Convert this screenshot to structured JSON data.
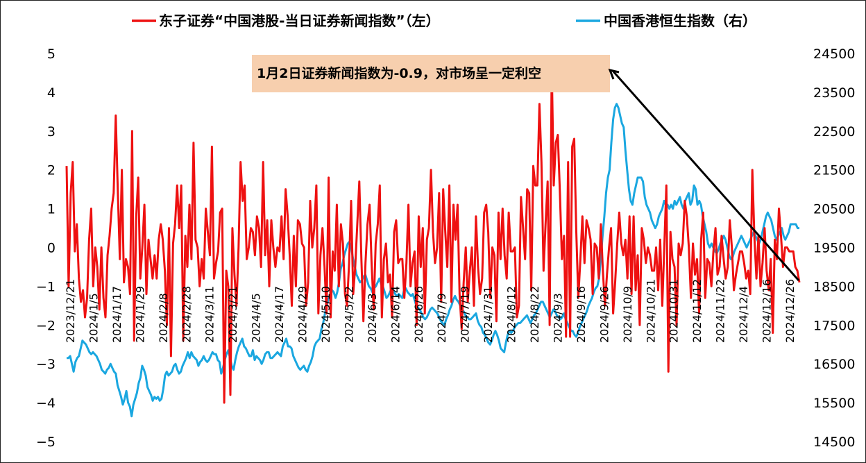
{
  "chart_data": {
    "type": "line",
    "colors": {
      "left_series": "#ee1111",
      "right_series": "#1aa7e0",
      "annotation_box": "#f7cfae"
    },
    "series": [
      {
        "name": "东子证券“中国港股-当日证券新闻指数”（左）",
        "axis": "left",
        "color": "#ee1111"
      },
      {
        "name": "中国香港恒生指数（右）",
        "axis": "right",
        "color": "#1aa7e0"
      }
    ],
    "left_axis": {
      "ylim": [
        -5,
        5
      ],
      "ticks": [
        "5",
        "4",
        "3",
        "2",
        "1",
        "0",
        "−1",
        "−2",
        "−3",
        "−4",
        "−5"
      ]
    },
    "right_axis": {
      "ylim": [
        14500,
        24500
      ],
      "ticks": [
        "24500",
        "23500",
        "22500",
        "21500",
        "20500",
        "19500",
        "18500",
        "17500",
        "16500",
        "15500",
        "14500"
      ]
    },
    "x_tick_labels": [
      "2023/12/21",
      "2024/1/5",
      "2024/1/17",
      "2024/1/29",
      "2024/2/8",
      "2024/2/28",
      "2024/3/11",
      "2024/3/21",
      "2024/4/5",
      "2024/4/17",
      "2024/4/29",
      "2024/5/10",
      "2024/5/22",
      "2024/6/3",
      "2024/6/14",
      "2024/6/26",
      "2024/7/9",
      "2024/7/19",
      "2024/7/31",
      "2024/8/12",
      "2024/8/22",
      "2024/9/3",
      "2024/9/16",
      "2024/9/26",
      "2024/10/9",
      "2024/10/21",
      "2024/10/31",
      "2024/11/12",
      "2024/11/22",
      "2024/12/4",
      "2024/12/16",
      "2024/12/26"
    ],
    "left_values": [
      2.1,
      -1.0,
      1.4,
      2.2,
      -0.1,
      0.6,
      -0.8,
      -1.4,
      -1.1,
      -1.8,
      -1.3,
      0.2,
      1.0,
      -1.0,
      0.0,
      -0.5,
      -1.6,
      0.0,
      -1.3,
      -1.8,
      -0.2,
      0.3,
      1.0,
      1.4,
      3.4,
      1.5,
      -0.3,
      2.0,
      -0.9,
      -0.3,
      -0.5,
      -1.2,
      3.0,
      -2.4,
      0.8,
      1.8,
      -0.8,
      0.0,
      1.1,
      -1.2,
      0.2,
      -0.3,
      -0.8,
      -0.2,
      -0.8,
      0.2,
      0.6,
      0.2,
      -0.6,
      -2.0,
      0.5,
      -2.8,
      0.1,
      0.6,
      1.6,
      0.5,
      1.6,
      -2.4,
      0.3,
      -0.5,
      1.1,
      -0.3,
      2.7,
      0.2,
      0.0,
      -1.0,
      -0.3,
      -0.8,
      1.0,
      0.4,
      -0.2,
      2.6,
      -0.8,
      -0.4,
      -0.1,
      0.9,
      1.0,
      -4.0,
      -0.6,
      -1.0,
      -3.8,
      0.5,
      -0.7,
      -1.5,
      0.0,
      2.2,
      1.2,
      1.6,
      -0.3,
      0.0,
      0.5,
      0.4,
      -0.2,
      0.8,
      0.5,
      -0.5,
      2.2,
      -0.2,
      0.7,
      -1.0,
      0.7,
      0.0,
      -0.5,
      0.0,
      -0.1,
      0.8,
      -0.3,
      1.5,
      0.8,
      -0.2,
      -1.5,
      0.3,
      -1.0,
      0.7,
      0.6,
      0.1,
      0.0,
      -1.5,
      -0.9,
      1.2,
      0.0,
      0.5,
      1.6,
      -1.7,
      -0.2,
      0.5,
      -0.5,
      -1.7,
      1.8,
      -1.8,
      -0.1,
      -0.6,
      1.1,
      -1.0,
      0.6,
      0.1,
      -1.2,
      -1.5,
      -0.4,
      1.2,
      -1.2,
      -0.5,
      0.6,
      1.7,
      -0.3,
      -1.9,
      -0.4,
      0.6,
      1.1,
      -0.4,
      -1.6,
      0.1,
      0.6,
      1.6,
      -1.8,
      -0.3,
      0.1,
      -0.9,
      -0.7,
      -1.8,
      0.4,
      0.7,
      -0.4,
      -0.3,
      -0.3,
      -1.3,
      -0.4,
      1.1,
      -1.0,
      -0.4,
      -0.1,
      -2.0,
      0.8,
      -0.5,
      0.5,
      -1.7,
      0.2,
      0.5,
      2.0,
      0.4,
      -0.4,
      0.0,
      1.4,
      -1.4,
      1.5,
      0.4,
      -0.5,
      1.6,
      -1.4,
      1.1,
      0.2,
      1.1,
      -1.2,
      -2.1,
      -0.9,
      0.0,
      -1.4,
      -0.6,
      0.0,
      -1.5,
      0.8,
      -0.5,
      -1.2,
      -0.8,
      0.9,
      1.1,
      0.4,
      -1.3,
      0.0,
      -0.2,
      -1.9,
      0.9,
      -0.3,
      1.0,
      -0.2,
      -0.8,
      0.9,
      -0.1,
      -0.1,
      0.0,
      -1.8,
      -1.5,
      1.3,
      0.5,
      -0.3,
      1.5,
      1.4,
      -1.1,
      2.1,
      1.6,
      1.6,
      3.7,
      2.2,
      -0.6,
      0.6,
      1.7,
      -2.0,
      4.7,
      1.6,
      2.7,
      2.9,
      1.4,
      -0.3,
      0.3,
      -2.3,
      2.2,
      -2.3,
      2.6,
      2.8,
      0.4,
      -1.3,
      -0.3,
      0.8,
      -0.4,
      0.7,
      0.5,
      0.2,
      -1.2,
      0.1,
      0.0,
      -0.8,
      0.6,
      -0.6,
      -1.5,
      -0.7,
      0.0,
      0.5,
      -1.7,
      -0.9,
      0.1,
      0.9,
      0.1,
      -0.2,
      0.2,
      -0.8,
      0.8,
      -1.2,
      0.8,
      -1.1,
      -0.2,
      -2.0,
      0.5,
      0.2,
      -0.4,
      0.0,
      -0.2,
      -0.6,
      -0.6,
      0.0,
      -1.1,
      0.2,
      -1.5,
      0.0,
      1.6,
      -3.2,
      0.4,
      -0.3,
      -0.5,
      -2.0,
      0.1,
      -0.2,
      0.1,
      1.2,
      0.8,
      0.0,
      -1.3,
      0.1,
      -0.7,
      -0.3,
      -1.7,
      0.2,
      0.9,
      -1.3,
      -0.3,
      -0.4,
      -1.0,
      -0.1,
      0.5,
      -0.7,
      -0.5,
      0.3,
      -0.3,
      -0.8,
      -0.5,
      0.7,
      0.0,
      -1.1,
      -0.7,
      -0.4,
      -0.1,
      -0.1,
      -0.4,
      -0.8,
      -0.6,
      -1.2,
      2.0,
      0.3,
      -0.8,
      0.3,
      -1.0,
      -0.4,
      0.5,
      -0.6,
      -1.1,
      -0.3,
      -2.2,
      0.2,
      -0.3,
      1.0,
      0.3,
      -0.5,
      0.0,
      0.0,
      -0.1,
      -0.1,
      -0.1,
      -0.5,
      -0.6,
      -0.9
    ],
    "right_values": [
      16650,
      16650,
      16700,
      16500,
      16300,
      16550,
      16650,
      16700,
      16900,
      17100,
      17050,
      17000,
      16900,
      16800,
      16750,
      16800,
      16750,
      16700,
      16600,
      16500,
      16350,
      16300,
      16250,
      16350,
      16400,
      16500,
      16400,
      16300,
      16250,
      15950,
      15800,
      15650,
      15450,
      15600,
      15800,
      15500,
      15400,
      15150,
      15450,
      15600,
      15750,
      16000,
      16150,
      16450,
      16350,
      16200,
      15900,
      15800,
      15700,
      15550,
      15650,
      15600,
      15650,
      15550,
      15600,
      15850,
      16200,
      16300,
      16200,
      16250,
      16300,
      16450,
      16500,
      16350,
      16250,
      16300,
      16450,
      16550,
      16650,
      16800,
      16650,
      16800,
      16700,
      16650,
      16600,
      16450,
      16550,
      16600,
      16700,
      16600,
      16550,
      16600,
      16700,
      16800,
      16750,
      16750,
      16600,
      16550,
      16250,
      16400,
      16600,
      16750,
      16850,
      16650,
      16450,
      16350,
      16600,
      16800,
      16950,
      17050,
      17150,
      16950,
      16900,
      16800,
      16700,
      16700,
      16850,
      16600,
      16700,
      16650,
      16600,
      16500,
      16600,
      16750,
      16800,
      16800,
      16650,
      16650,
      16700,
      16750,
      16800,
      16750,
      16700,
      16950,
      17050,
      17150,
      16950,
      16950,
      16900,
      16700,
      16600,
      16500,
      16400,
      16350,
      16400,
      16450,
      16350,
      16300,
      16450,
      16550,
      16700,
      16950,
      17050,
      17100,
      17150,
      17400,
      17550,
      17800,
      18000,
      18150,
      18300,
      18400,
      18350,
      18200,
      18350,
      18600,
      18950,
      19100,
      19300,
      19450,
      19600,
      19650,
      19500,
      19200,
      19000,
      18800,
      18700,
      18600,
      18650,
      18750,
      18800,
      18650,
      18500,
      18450,
      18350,
      18450,
      18500,
      18600,
      18700,
      18550,
      18500,
      18350,
      18200,
      18250,
      18350,
      18450,
      18400,
      18300,
      18250,
      18300,
      18250,
      18200,
      18400,
      18450,
      18350,
      18300,
      18250,
      18300,
      18150,
      18000,
      17950,
      17900,
      17800,
      17700,
      17650,
      17700,
      17800,
      17900,
      17950,
      17900,
      17850,
      17800,
      17700,
      17600,
      17550,
      17500,
      17650,
      17750,
      17900,
      18000,
      18150,
      18250,
      18150,
      18100,
      18000,
      17900,
      17850,
      17750,
      17700,
      17650,
      17650,
      17700,
      17750,
      17800,
      17600,
      17500,
      17450,
      17300,
      17250,
      17150,
      17050,
      17000,
      17100,
      17250,
      17350,
      17250,
      17100,
      16900,
      16850,
      16800,
      17050,
      17250,
      17350,
      17300,
      17350,
      17450,
      17500,
      17550,
      17550,
      17600,
      17650,
      17700,
      17750,
      17650,
      17550,
      17650,
      17750,
      17800,
      17900,
      18000,
      18100,
      18100,
      18000,
      17900,
      17800,
      17700,
      17800,
      17900,
      17850,
      17750,
      17700,
      17650,
      17700,
      17800,
      17650,
      17550,
      17450,
      17350,
      17350,
      17250,
      17200,
      17300,
      17450,
      17550,
      17650,
      17750,
      17850,
      18000,
      18100,
      18200,
      18350,
      18450,
      18500,
      18700,
      19200,
      19800,
      20300,
      20900,
      21300,
      21500,
      22200,
      22800,
      23100,
      23200,
      23100,
      22900,
      22700,
      22600,
      22000,
      21500,
      21000,
      20700,
      20600,
      20900,
      21100,
      21300,
      21300,
      21300,
      21200,
      20800,
      20600,
      20500,
      20400,
      20200,
      20100,
      20000,
      20100,
      20300,
      20400,
      20500,
      20700,
      20600,
      20600,
      20500,
      20600,
      20500,
      20700,
      20600,
      20700,
      20800,
      20600,
      20500,
      20700,
      20800,
      20900,
      20600,
      20700,
      21100,
      21000,
      20600,
      20700,
      20600,
      20300,
      20100,
      19900,
      19600,
      19500,
      19600,
      19500,
      19400,
      19350,
      19450,
      19600,
      19700,
      19800,
      19700,
      19500,
      19300,
      19200,
      19250,
      19400,
      19500,
      19600,
      19700,
      19800,
      19700,
      19600,
      19500,
      19600,
      19700,
      19800,
      19900,
      19800,
      19700,
      19600,
      19700,
      19900,
      20100,
      20300,
      20400,
      20300,
      20200,
      20000,
      19800,
      19700,
      19800,
      19900,
      20000,
      19800,
      19700,
      19800,
      19900,
      20100,
      20100,
      20100,
      20100,
      20000,
      20000
    ]
  },
  "legend": {
    "left_series_label": "东子证券“中国港股-当日证券新闻指数”（左）",
    "right_series_label": "中国香港恒生指数（右）"
  },
  "annotation": {
    "text": "1月2日证券新闻指数为-0.9，对市场呈一定利空"
  }
}
